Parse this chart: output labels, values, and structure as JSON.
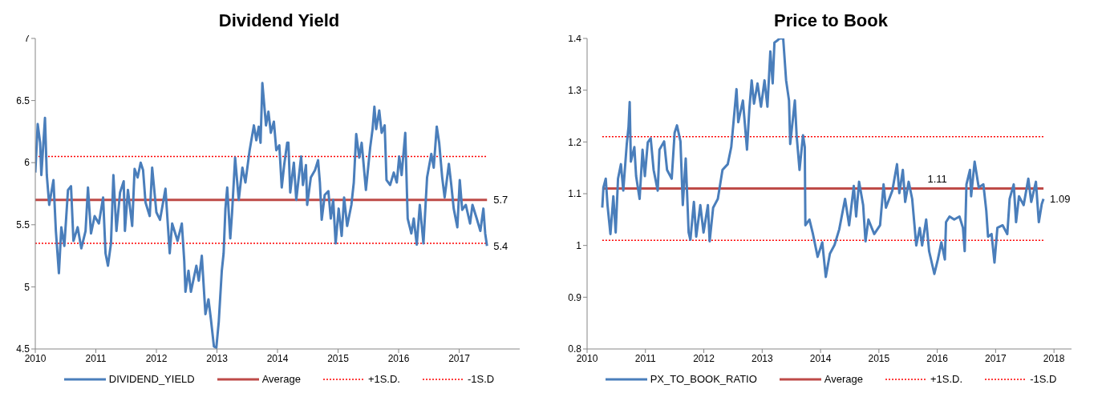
{
  "chart_data": [
    {
      "type": "line",
      "title": "Dividend Yield",
      "xlim": [
        2010,
        2018
      ],
      "xticks": [
        2010,
        2011,
        2012,
        2013,
        2014,
        2015,
        2016,
        2017
      ],
      "ylim": [
        4.5,
        7
      ],
      "yticks": [
        4.5,
        5,
        5.5,
        6,
        6.5,
        7
      ],
      "legend": "bottom",
      "series": [
        {
          "name": "DIVIDEND_YIELD",
          "color": "#4a7ebb",
          "x": [
            2010.0,
            2010.04,
            2010.08,
            2010.1,
            2010.16,
            2010.19,
            2010.23,
            2010.3,
            2010.34,
            2010.39,
            2010.43,
            2010.48,
            2010.54,
            2010.59,
            2010.63,
            2010.7,
            2010.76,
            2010.83,
            2010.87,
            2010.92,
            2010.98,
            2011.05,
            2011.12,
            2011.16,
            2011.2,
            2011.25,
            2011.29,
            2011.34,
            2011.4,
            2011.46,
            2011.48,
            2011.53,
            2011.6,
            2011.64,
            2011.69,
            2011.74,
            2011.78,
            2011.82,
            2011.89,
            2011.93,
            2012.0,
            2012.06,
            2012.15,
            2012.22,
            2012.26,
            2012.35,
            2012.42,
            2012.46,
            2012.48,
            2012.53,
            2012.57,
            2012.66,
            2012.7,
            2012.75,
            2012.81,
            2012.86,
            2012.9,
            2012.95,
            2012.99,
            2013.03,
            2013.08,
            2013.11,
            2013.14,
            2013.17,
            2013.22,
            2013.25,
            2013.3,
            2013.36,
            2013.42,
            2013.47,
            2013.54,
            2013.61,
            2013.65,
            2013.69,
            2013.72,
            2013.75,
            2013.81,
            2013.85,
            2013.89,
            2013.94,
            2013.98,
            2014.03,
            2014.07,
            2014.11,
            2014.16,
            2014.18,
            2014.21,
            2014.27,
            2014.31,
            2014.39,
            2014.42,
            2014.47,
            2014.49,
            2014.55,
            2014.62,
            2014.67,
            2014.7,
            2014.73,
            2014.78,
            2014.84,
            2014.88,
            2014.92,
            2014.96,
            2015.01,
            2015.06,
            2015.1,
            2015.15,
            2015.22,
            2015.26,
            2015.3,
            2015.35,
            2015.39,
            2015.46,
            2015.53,
            2015.57,
            2015.6,
            2015.63,
            2015.68,
            2015.72,
            2015.77,
            2015.8,
            2015.86,
            2015.92,
            2015.97,
            2016.01,
            2016.05,
            2016.11,
            2016.15,
            2016.21,
            2016.25,
            2016.3,
            2016.35,
            2016.41,
            2016.47,
            2016.54,
            2016.58,
            2016.63,
            2016.67,
            2016.72,
            2016.76,
            2016.83,
            2016.87,
            2016.91,
            2016.97,
            2017.01,
            2017.05,
            2017.11,
            2017.18,
            2017.22,
            2017.29,
            2017.35,
            2017.4,
            2017.43,
            2017.46
          ],
          "values": [
            5.92,
            6.31,
            6.16,
            5.9,
            6.36,
            5.9,
            5.66,
            5.86,
            5.45,
            5.11,
            5.48,
            5.33,
            5.78,
            5.81,
            5.37,
            5.48,
            5.31,
            5.45,
            5.8,
            5.43,
            5.57,
            5.51,
            5.72,
            5.27,
            5.17,
            5.35,
            5.9,
            5.45,
            5.76,
            5.85,
            5.45,
            5.78,
            5.49,
            5.95,
            5.88,
            6.0,
            5.94,
            5.68,
            5.57,
            5.96,
            5.6,
            5.54,
            5.79,
            5.27,
            5.51,
            5.37,
            5.51,
            5.21,
            4.96,
            5.13,
            4.96,
            5.17,
            5.05,
            5.25,
            4.78,
            4.9,
            4.74,
            4.52,
            4.51,
            4.72,
            5.13,
            5.27,
            5.63,
            5.8,
            5.39,
            5.6,
            6.04,
            5.7,
            5.96,
            5.84,
            6.1,
            6.3,
            6.18,
            6.29,
            6.16,
            6.64,
            6.3,
            6.41,
            6.24,
            6.33,
            6.1,
            6.14,
            5.8,
            5.98,
            6.16,
            6.16,
            5.76,
            6.0,
            5.7,
            6.05,
            5.82,
            5.98,
            5.66,
            5.88,
            5.94,
            6.02,
            5.84,
            5.54,
            5.74,
            5.77,
            5.55,
            5.7,
            5.35,
            5.63,
            5.41,
            5.72,
            5.49,
            5.66,
            5.84,
            6.23,
            6.04,
            6.16,
            5.78,
            6.12,
            6.27,
            6.45,
            6.27,
            6.42,
            6.24,
            6.3,
            5.86,
            5.82,
            5.92,
            5.84,
            6.05,
            5.9,
            6.24,
            5.55,
            5.43,
            5.55,
            5.34,
            5.66,
            5.35,
            5.88,
            6.07,
            5.96,
            6.29,
            6.16,
            5.88,
            5.72,
            5.99,
            5.82,
            5.63,
            5.48,
            5.86,
            5.62,
            5.66,
            5.51,
            5.66,
            5.55,
            5.45,
            5.63,
            5.43,
            5.33
          ]
        }
      ],
      "ref_lines": [
        {
          "axis": "y",
          "value": 5.7,
          "label": "Average",
          "color": "#be4b48",
          "line_style": "solid"
        },
        {
          "axis": "y",
          "value": 6.05,
          "label": "+1S.D.",
          "color": "#ff0000",
          "line_style": "dotted"
        },
        {
          "axis": "y",
          "value": 5.35,
          "label": "-1S.D",
          "color": "#ff0000",
          "line_style": "dotted"
        }
      ],
      "annotations": [
        {
          "text": "5.7",
          "x": 2017.46,
          "y": 5.7
        },
        {
          "text": "5.4",
          "x": 2017.46,
          "y": 5.33
        }
      ]
    },
    {
      "type": "line",
      "title": "Price to Book",
      "xlim": [
        2010,
        2018.3
      ],
      "xticks": [
        2010,
        2011,
        2012,
        2013,
        2014,
        2015,
        2016,
        2017,
        2018
      ],
      "ylim": [
        0.8,
        1.4
      ],
      "yticks": [
        0.8,
        0.9,
        1,
        1.1,
        1.2,
        1.3,
        1.4
      ],
      "legend": "bottom",
      "series": [
        {
          "name": "PX_TO_BOOK_RATIO",
          "color": "#4a7ebb",
          "x": [
            2010.26,
            2010.28,
            2010.32,
            2010.35,
            2010.4,
            2010.45,
            2010.49,
            2010.53,
            2010.58,
            2010.62,
            2010.68,
            2010.71,
            2010.73,
            2010.75,
            2010.81,
            2010.84,
            2010.9,
            2010.95,
            2010.99,
            2011.04,
            2011.09,
            2011.14,
            2011.21,
            2011.24,
            2011.32,
            2011.37,
            2011.45,
            2011.5,
            2011.54,
            2011.6,
            2011.64,
            2011.69,
            2011.74,
            2011.77,
            2011.83,
            2011.87,
            2011.94,
            2011.995,
            2012.07,
            2012.1,
            2012.16,
            2012.24,
            2012.32,
            2012.41,
            2012.47,
            2012.56,
            2012.59,
            2012.67,
            2012.74,
            2012.78,
            2012.82,
            2012.86,
            2012.92,
            2012.98,
            2013.04,
            2013.09,
            2013.14,
            2013.18,
            2013.21,
            2013.27,
            2013.3,
            2013.36,
            2013.41,
            2013.46,
            2013.48,
            2013.56,
            2013.59,
            2013.64,
            2013.7,
            2013.73,
            2013.74,
            2013.81,
            2013.87,
            2013.95,
            2014.03,
            2014.09,
            2014.16,
            2014.24,
            2014.32,
            2014.42,
            2014.49,
            2014.57,
            2014.61,
            2014.66,
            2014.73,
            2014.77,
            2014.82,
            2014.92,
            2015.02,
            2015.08,
            2015.12,
            2015.23,
            2015.31,
            2015.35,
            2015.41,
            2015.45,
            2015.51,
            2015.57,
            2015.64,
            2015.7,
            2015.74,
            2015.81,
            2015.86,
            2015.95,
            2016.01,
            2016.07,
            2016.13,
            2016.15,
            2016.21,
            2016.29,
            2016.38,
            2016.44,
            2016.47,
            2016.5,
            2016.56,
            2016.58,
            2016.64,
            2016.71,
            2016.79,
            2016.84,
            2016.87,
            2016.93,
            2016.98,
            2017.03,
            2017.12,
            2017.2,
            2017.24,
            2017.31,
            2017.35,
            2017.4,
            2017.48,
            2017.56,
            2017.61,
            2017.69,
            2017.74,
            2017.79,
            2017.82
          ],
          "values": [
            1.073,
            1.112,
            1.129,
            1.078,
            1.022,
            1.095,
            1.025,
            1.129,
            1.157,
            1.106,
            1.196,
            1.229,
            1.277,
            1.162,
            1.19,
            1.134,
            1.09,
            1.185,
            1.134,
            1.199,
            1.207,
            1.146,
            1.106,
            1.185,
            1.201,
            1.146,
            1.129,
            1.218,
            1.232,
            1.201,
            1.078,
            1.168,
            1.025,
            1.011,
            1.084,
            1.017,
            1.078,
            1.025,
            1.078,
            1.008,
            1.073,
            1.09,
            1.146,
            1.157,
            1.19,
            1.302,
            1.238,
            1.28,
            1.185,
            1.263,
            1.319,
            1.274,
            1.313,
            1.268,
            1.319,
            1.268,
            1.375,
            1.313,
            1.392,
            1.397,
            1.4,
            1.4,
            1.319,
            1.28,
            1.196,
            1.28,
            1.213,
            1.146,
            1.213,
            1.19,
            1.039,
            1.05,
            1.022,
            0.978,
            1.006,
            0.939,
            0.984,
            1.001,
            1.031,
            1.09,
            1.039,
            1.115,
            1.056,
            1.123,
            1.078,
            1.008,
            1.05,
            1.022,
            1.039,
            1.118,
            1.073,
            1.106,
            1.157,
            1.101,
            1.146,
            1.084,
            1.123,
            1.09,
            1.0,
            1.034,
            1.0,
            1.05,
            0.989,
            0.945,
            0.973,
            1.006,
            0.973,
            1.045,
            1.056,
            1.05,
            1.056,
            1.034,
            0.989,
            1.118,
            1.146,
            1.095,
            1.162,
            1.112,
            1.118,
            1.067,
            1.017,
            1.022,
            0.967,
            1.034,
            1.039,
            1.022,
            1.09,
            1.118,
            1.045,
            1.095,
            1.078,
            1.129,
            1.084,
            1.123,
            1.045,
            1.08,
            1.09
          ]
        }
      ],
      "ref_lines": [
        {
          "axis": "y",
          "value": 1.11,
          "label": "Average",
          "color": "#be4b48",
          "line_style": "solid"
        },
        {
          "axis": "y",
          "value": 1.21,
          "label": "+1S.D.",
          "color": "#ff0000",
          "line_style": "dotted"
        },
        {
          "axis": "y",
          "value": 1.01,
          "label": "-1S.D",
          "color": "#ff0000",
          "line_style": "dotted"
        }
      ],
      "annotations": [
        {
          "text": "1.11",
          "x": 2016.0,
          "y": 1.11
        },
        {
          "text": "1.09",
          "x": 2017.82,
          "y": 1.09
        }
      ]
    }
  ]
}
